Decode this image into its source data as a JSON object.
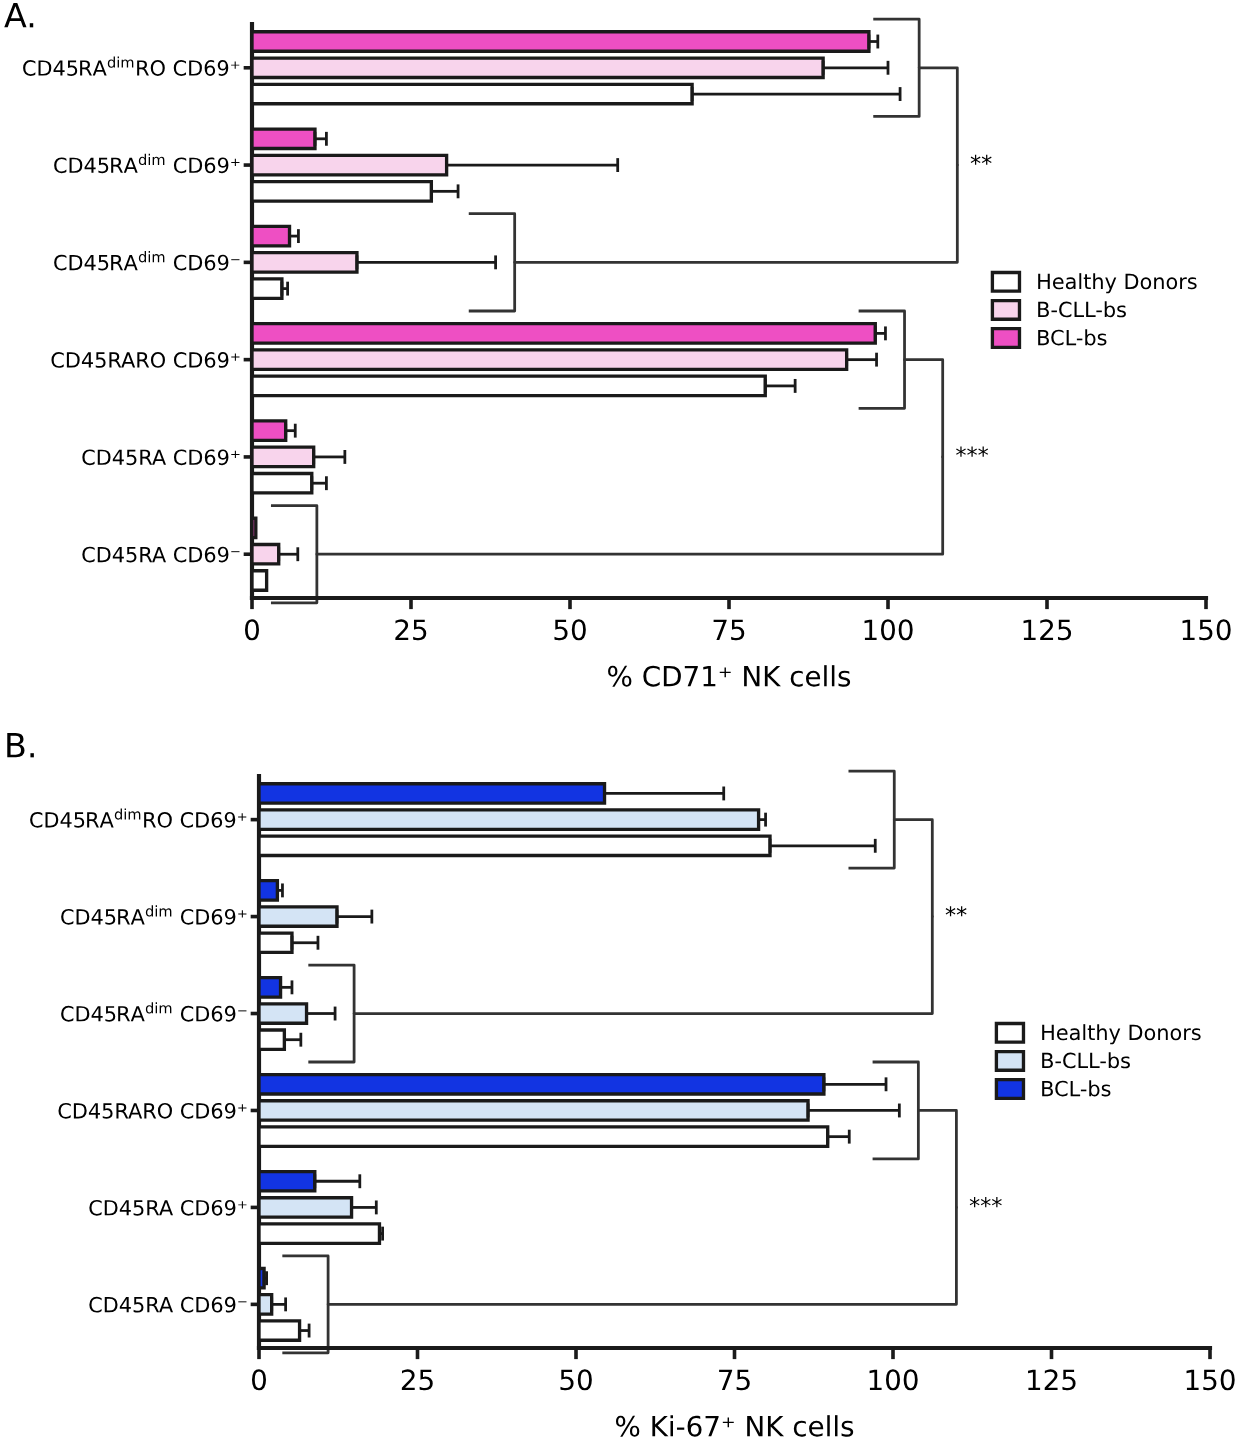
{
  "chart_data": [
    {
      "type": "bar",
      "orientation": "horizontal",
      "title": "A.",
      "xlabel": "% CD71⁺ NK cells",
      "categories": [
        "CD45RA$^{dim}$RO CD69⁺",
        "CD45RA$^{dim}$ CD69⁺",
        "CD45RA$^{dim}$ CD69⁻",
        "CD45RARO CD69⁺",
        "CD45RA CD69⁺",
        "CD45RA CD69⁻"
      ],
      "series": [
        {
          "name": "Healthy Donors",
          "color": "#ffffff",
          "values": [
            69.2,
            28.2,
            4.7,
            80.7,
            9.4,
            2.3
          ],
          "errors": [
            [
              69.2,
              101.9
            ],
            [
              28.2,
              32.4
            ],
            [
              4.7,
              5.6
            ],
            [
              80.7,
              85.4
            ],
            [
              9.4,
              11.7
            ],
            null
          ]
        },
        {
          "name": "B-CLL-bs",
          "color": "#f8d4ec",
          "values": [
            89.8,
            30.6,
            16.5,
            93.5,
            9.7,
            4.2
          ],
          "errors": [
            [
              89.8,
              100
            ],
            [
              30.6,
              57.5
            ],
            [
              16.5,
              38.3
            ],
            [
              93.5,
              98.2
            ],
            [
              9.7,
              14.6
            ],
            [
              4.2,
              7.2
            ]
          ]
        },
        {
          "name": "BCL-bs",
          "color": "#ee4fc3",
          "values": [
            97,
            9.9,
            5.9,
            98,
            5.3,
            0.6
          ],
          "errors": [
            [
              97,
              98.4
            ],
            [
              9.9,
              11.7
            ],
            [
              5.9,
              7.3
            ],
            [
              98,
              99.6
            ],
            [
              5.3,
              6.8
            ],
            null
          ]
        }
      ],
      "xlim": [
        0,
        150
      ],
      "xticks": [
        0,
        25,
        50,
        75,
        100,
        125,
        150
      ],
      "legend": "right",
      "annotations": [
        "**",
        "***"
      ]
    },
    {
      "type": "bar",
      "orientation": "horizontal",
      "title": "B.",
      "xlabel": "% Ki-67⁺ NK cells",
      "categories": [
        "CD45RA$^{dim}$RO CD69⁺",
        "CD45RA$^{dim}$ CD69⁺",
        "CD45RA$^{dim}$ CD69⁻",
        "CD45RARO CD69⁺",
        "CD45RA CD69⁺",
        "CD45RA CD69⁻"
      ],
      "series": [
        {
          "name": "Healthy Donors",
          "color": "#ffffff",
          "values": [
            80.6,
            5.2,
            4.0,
            89.7,
            19.0,
            6.4
          ],
          "errors": [
            [
              80.6,
              97.2
            ],
            [
              5.2,
              9.3
            ],
            [
              4.0,
              6.6
            ],
            [
              89.7,
              93.1
            ],
            [
              19.0,
              19.5
            ],
            [
              6.4,
              7.9
            ]
          ]
        },
        {
          "name": "B-CLL-bs",
          "color": "#d4e4f5",
          "values": [
            78.8,
            12.3,
            7.5,
            86.6,
            14.6,
            2.0
          ],
          "errors": [
            [
              78.8,
              79.9
            ],
            [
              12.3,
              17.8
            ],
            [
              7.5,
              12
            ],
            [
              86.6,
              101
            ],
            [
              14.6,
              18.5
            ],
            [
              2.0,
              4.2
            ]
          ]
        },
        {
          "name": "BCL-bs",
          "color": "#1234e2",
          "values": [
            54.5,
            2.9,
            3.4,
            89.1,
            8.8,
            0.8
          ],
          "errors": [
            [
              54.5,
              73.3
            ],
            [
              2.9,
              3.7
            ],
            [
              3.4,
              5.2
            ],
            [
              89.1,
              98.9
            ],
            [
              8.8,
              15.9
            ],
            [
              0.8,
              1.2
            ]
          ]
        }
      ],
      "xlim": [
        0,
        150
      ],
      "xticks": [
        0,
        25,
        50,
        75,
        100,
        125,
        150
      ],
      "legend": "right",
      "annotations": [
        "**",
        "***"
      ]
    }
  ]
}
